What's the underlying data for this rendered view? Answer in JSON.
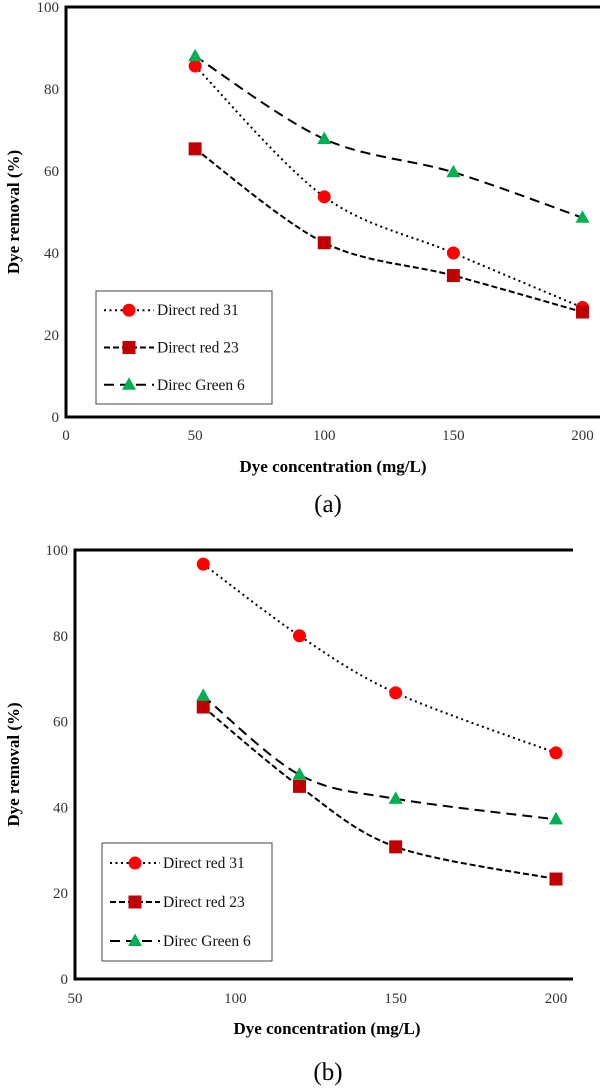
{
  "chart_data": [
    {
      "type": "line",
      "panel_label": "(a)",
      "xlabel": "Dye concentration (mg/L)",
      "ylabel": "Dye removal (%)",
      "xlim": [
        0,
        200
      ],
      "ylim": [
        0,
        100
      ],
      "xticks": [
        0,
        50,
        100,
        150,
        200
      ],
      "yticks": [
        0,
        20,
        40,
        60,
        80,
        100
      ],
      "grid": false,
      "legend_position": "bottom-left",
      "x": [
        50,
        100,
        150,
        200
      ],
      "series": [
        {
          "name": "Direct red 31",
          "values": [
            85.6,
            53.7,
            40,
            26.7
          ],
          "color": "#ff0000",
          "marker": "circle",
          "dash": "dotted"
        },
        {
          "name": "Direct red 23",
          "values": [
            65.4,
            42.5,
            34.5,
            25.6
          ],
          "color": "#c00000",
          "marker": "square",
          "dash": "dashed"
        },
        {
          "name": "Direc Green 6",
          "values": [
            88,
            67.8,
            59.7,
            48.6
          ],
          "color": "#00b050",
          "marker": "triangle",
          "dash": "longdash"
        }
      ]
    },
    {
      "type": "line",
      "panel_label": "(b)",
      "xlabel": "Dye concentration (mg/L)",
      "ylabel": "Dye removal (%)",
      "xlim": [
        50,
        200
      ],
      "ylim": [
        0,
        100
      ],
      "xticks": [
        50,
        100,
        150,
        200
      ],
      "yticks": [
        0,
        20,
        40,
        60,
        80,
        100
      ],
      "grid": false,
      "legend_position": "bottom-left",
      "x": [
        90,
        120,
        150,
        200
      ],
      "series": [
        {
          "name": "Direct red 31",
          "values": [
            96.7,
            80,
            66.7,
            52.7
          ],
          "color": "#ff0000",
          "marker": "circle",
          "dash": "dotted"
        },
        {
          "name": "Direct red 23",
          "values": [
            63.4,
            44.9,
            30.8,
            23.3
          ],
          "color": "#c00000",
          "marker": "square",
          "dash": "dashed"
        },
        {
          "name": "Direc Green 6",
          "values": [
            66,
            47.6,
            42,
            37.2
          ],
          "color": "#00b050",
          "marker": "triangle",
          "dash": "longdash"
        }
      ]
    }
  ]
}
